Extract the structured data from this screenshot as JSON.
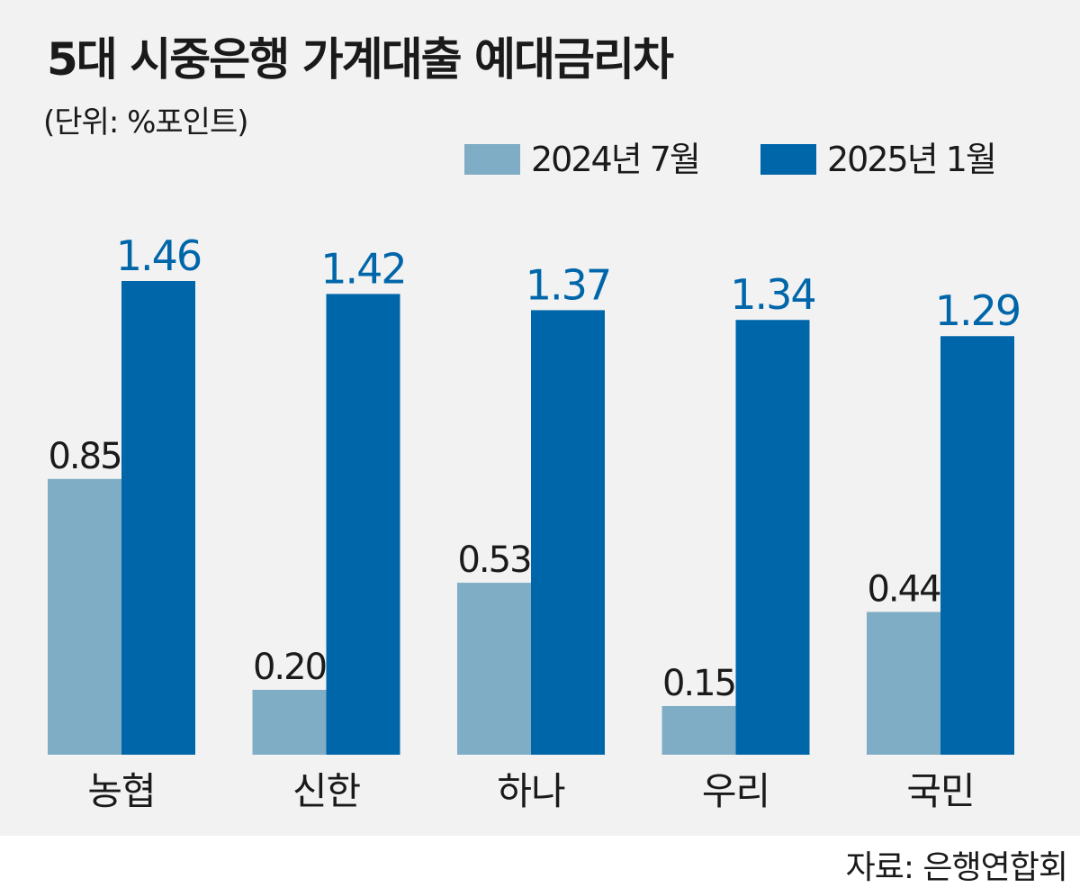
{
  "colors": {
    "background": "#f2f2f2",
    "series_2024": "#7fadc6",
    "series_2025": "#0066aa",
    "label_dark": "#1a1a1a",
    "label_blue": "#0066aa"
  },
  "header": {
    "title": "5대 시중은행 가계대출 예대금리차",
    "unit": "(단위: %포인트)"
  },
  "footer": {
    "source": "자료: 은행연합회"
  },
  "chart_data": {
    "type": "bar",
    "title": "5대 시중은행 가계대출 예대금리차",
    "categories": [
      "농협",
      "신한",
      "하나",
      "우리",
      "국민"
    ],
    "series": [
      {
        "name": "2024년 7월",
        "values": [
          0.85,
          0.2,
          0.53,
          0.15,
          0.44
        ]
      },
      {
        "name": "2025년 1월",
        "values": [
          1.46,
          1.42,
          1.37,
          1.34,
          1.29
        ]
      }
    ],
    "value_labels": [
      [
        "0.85",
        "0.20",
        "0.53",
        "0.15",
        "0.44"
      ],
      [
        "1.46",
        "1.42",
        "1.37",
        "1.34",
        "1.29"
      ]
    ],
    "ylim": [
      0,
      1.46
    ],
    "grid": false,
    "legend_position": "top-right"
  }
}
